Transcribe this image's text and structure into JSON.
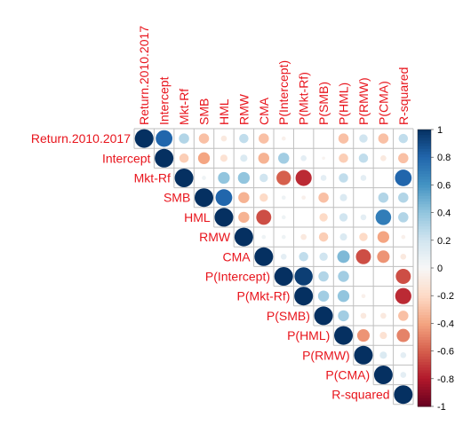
{
  "chart_data": {
    "type": "heatmap",
    "subtype": "correlation-circle-upper",
    "variables": [
      "Return.2010.2017",
      "Intercept",
      "Mkt-Rf",
      "SMB",
      "HML",
      "RMW",
      "CMA",
      "P(Intercept)",
      "P(Mkt-Rf)",
      "P(SMB)",
      "P(HML)",
      "P(RMW)",
      "P(CMA)",
      "R-squared"
    ],
    "matrix": [
      [
        1,
        0.8,
        0.3,
        -0.3,
        -0.1,
        0.25,
        -0.3,
        -0.05,
        0.0,
        0.0,
        -0.3,
        0.2,
        -0.3,
        0.25
      ],
      [
        0.8,
        1,
        -0.25,
        -0.4,
        -0.15,
        0.15,
        -0.35,
        0.35,
        0.1,
        -0.03,
        -0.25,
        0.25,
        -0.1,
        -0.3
      ],
      [
        0.3,
        -0.25,
        1,
        0.05,
        0.4,
        0.4,
        0.2,
        -0.6,
        -0.75,
        0.1,
        0.25,
        0.1,
        0.0,
        0.8
      ],
      [
        -0.3,
        -0.4,
        0.05,
        1,
        0.8,
        -0.35,
        -0.2,
        0.05,
        -0.05,
        -0.3,
        0.15,
        0.0,
        0.3,
        0.3
      ],
      [
        -0.1,
        -0.15,
        0.4,
        0.8,
        1,
        -0.35,
        -0.65,
        0.05,
        0.0,
        -0.2,
        0.2,
        0.1,
        0.7,
        0.3
      ],
      [
        0.25,
        0.15,
        0.4,
        -0.35,
        -0.35,
        1,
        0.05,
        0.05,
        -0.1,
        -0.25,
        0.15,
        -0.2,
        -0.4,
        -0.05
      ],
      [
        -0.3,
        -0.35,
        0.2,
        -0.2,
        -0.65,
        0.05,
        1,
        0.1,
        0.25,
        0.2,
        0.45,
        -0.65,
        -0.45,
        -0.1
      ],
      [
        -0.05,
        0.35,
        -0.6,
        0.05,
        0.05,
        0.05,
        0.1,
        1,
        0.95,
        0.3,
        0.35,
        0.0,
        0.0,
        -0.65
      ],
      [
        0.0,
        0.1,
        -0.75,
        -0.05,
        0.0,
        -0.1,
        0.25,
        0.95,
        1,
        0.35,
        0.4,
        -0.05,
        0.0,
        -0.75
      ],
      [
        0.0,
        -0.03,
        0.1,
        -0.3,
        -0.2,
        -0.25,
        0.2,
        0.3,
        0.35,
        1,
        0.35,
        -0.1,
        -0.1,
        -0.3
      ],
      [
        -0.3,
        -0.25,
        0.25,
        0.15,
        0.2,
        0.15,
        0.45,
        0.35,
        0.4,
        0.35,
        1,
        -0.45,
        -0.15,
        -0.5
      ],
      [
        0.2,
        0.25,
        0.1,
        0.0,
        0.1,
        -0.2,
        -0.65,
        0.0,
        -0.05,
        -0.1,
        -0.45,
        1,
        0.15,
        0.1
      ],
      [
        -0.3,
        -0.1,
        0.0,
        0.3,
        0.7,
        -0.4,
        -0.45,
        0.0,
        0.0,
        -0.1,
        -0.15,
        0.15,
        1,
        0.1
      ],
      [
        0.25,
        -0.3,
        0.8,
        0.3,
        0.3,
        -0.05,
        -0.1,
        -0.65,
        -0.75,
        -0.3,
        -0.5,
        0.1,
        0.1,
        1
      ]
    ],
    "colorbar": {
      "ticks": [
        "1",
        "0.8",
        "0.6",
        "0.4",
        "0.2",
        "0",
        "-0.2",
        "-0.4",
        "-0.6",
        "-0.8",
        "-1"
      ],
      "range": [
        -1,
        1
      ]
    },
    "colors": {
      "positive": "#053061",
      "neutral": "#f7f7f7",
      "negative": "#67001f",
      "label": "#e8141c",
      "grid": "#bfbfbf"
    }
  }
}
